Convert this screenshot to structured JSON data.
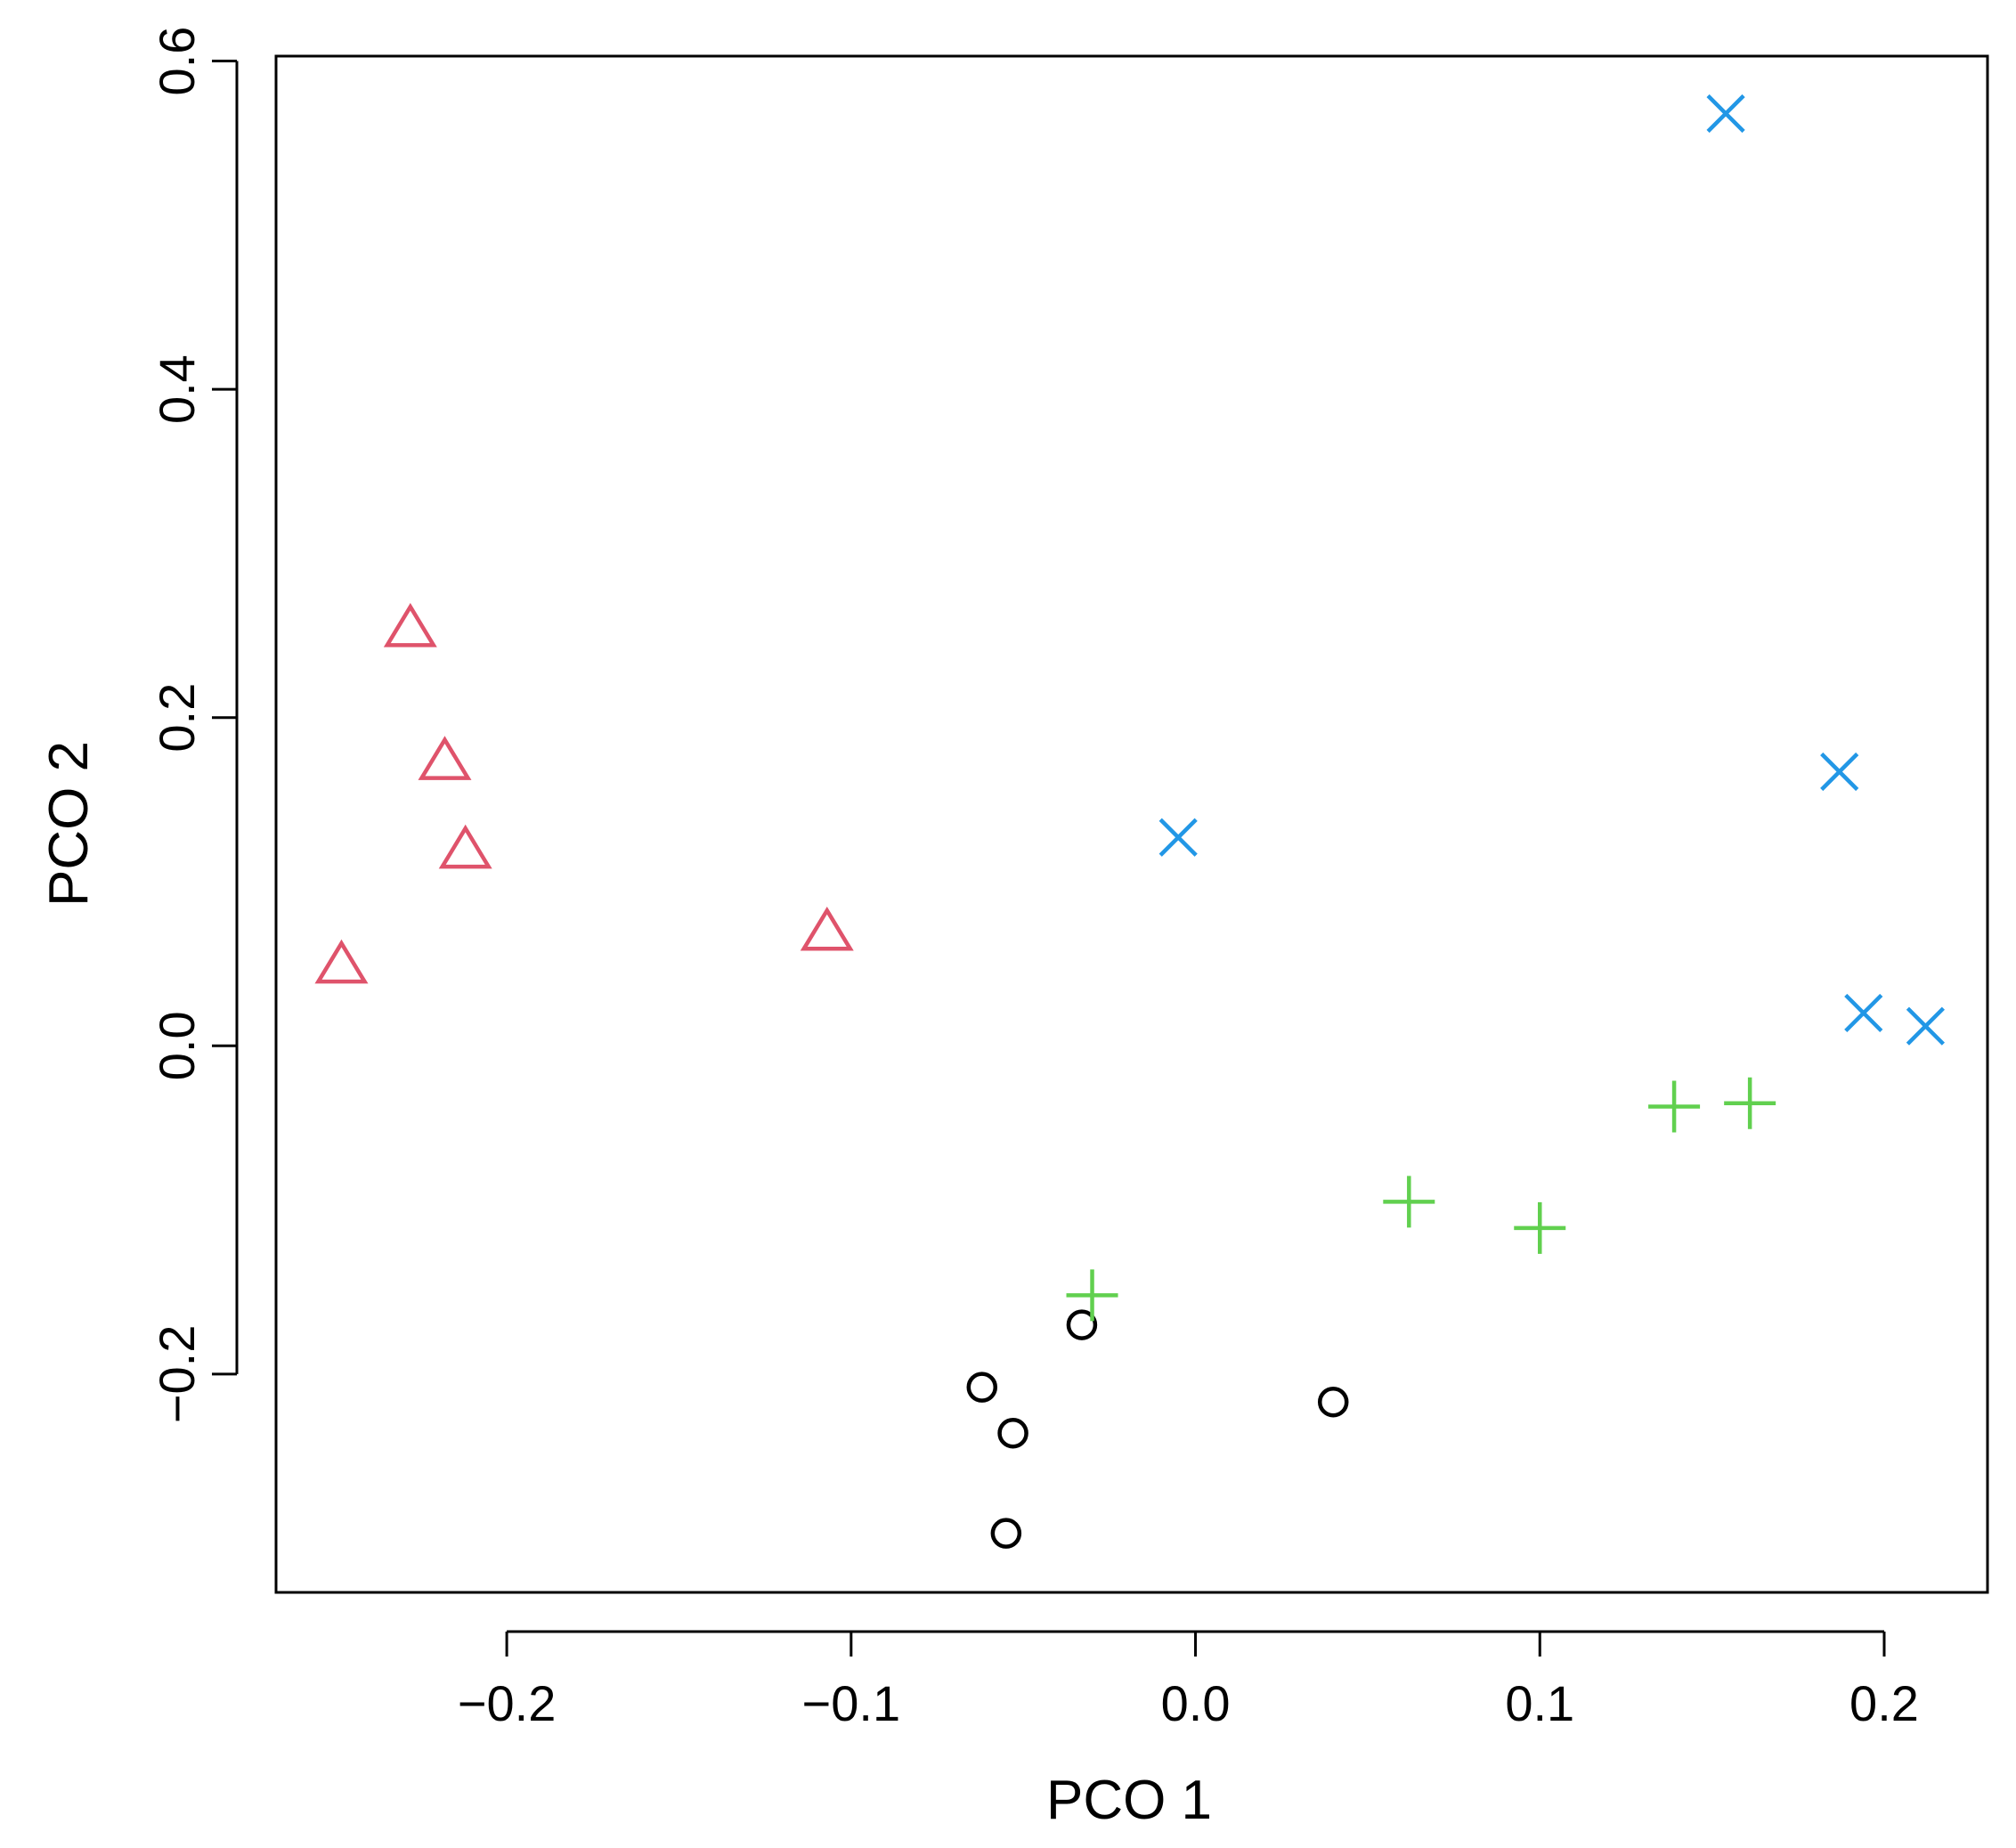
{
  "chart_data": {
    "type": "scatter",
    "title": "",
    "xlabel": "PCO 1",
    "ylabel": "PCO 2",
    "xlim": [
      -0.267,
      0.23
    ],
    "ylim": [
      -0.333,
      0.603
    ],
    "x_ticks": [
      -0.2,
      -0.1,
      0.0,
      0.1,
      0.2
    ],
    "x_tick_labels": [
      "−0.2",
      "−0.1",
      "0.0",
      "0.1",
      "0.2"
    ],
    "y_ticks": [
      -0.2,
      0.0,
      0.2,
      0.4,
      0.6
    ],
    "y_tick_labels": [
      "−0.2",
      "0.0",
      "0.2",
      "0.4",
      "0.6"
    ],
    "grid": false,
    "legend": "none",
    "series": [
      {
        "marker": "circle",
        "color": "#000000",
        "points": [
          {
            "x": -0.062,
            "y": -0.208
          },
          {
            "x": -0.053,
            "y": -0.236
          },
          {
            "x": -0.055,
            "y": -0.297
          },
          {
            "x": -0.033,
            "y": -0.17
          },
          {
            "x": 0.04,
            "y": -0.217
          }
        ]
      },
      {
        "marker": "triangle",
        "color": "#DF536B",
        "points": [
          {
            "x": -0.228,
            "y": 0.255
          },
          {
            "x": -0.218,
            "y": 0.174
          },
          {
            "x": -0.212,
            "y": 0.12
          },
          {
            "x": -0.248,
            "y": 0.05
          },
          {
            "x": -0.107,
            "y": 0.07
          }
        ]
      },
      {
        "marker": "plus",
        "color": "#61D04F",
        "points": [
          {
            "x": -0.03,
            "y": -0.152
          },
          {
            "x": 0.062,
            "y": -0.095
          },
          {
            "x": 0.1,
            "y": -0.111
          },
          {
            "x": 0.139,
            "y": -0.037
          },
          {
            "x": 0.161,
            "y": -0.035
          }
        ]
      },
      {
        "marker": "cross",
        "color": "#2297E6",
        "points": [
          {
            "x": -0.005,
            "y": 0.127
          },
          {
            "x": 0.154,
            "y": 0.568
          },
          {
            "x": 0.187,
            "y": 0.167
          },
          {
            "x": 0.194,
            "y": 0.02
          },
          {
            "x": 0.212,
            "y": 0.012
          }
        ]
      }
    ]
  }
}
